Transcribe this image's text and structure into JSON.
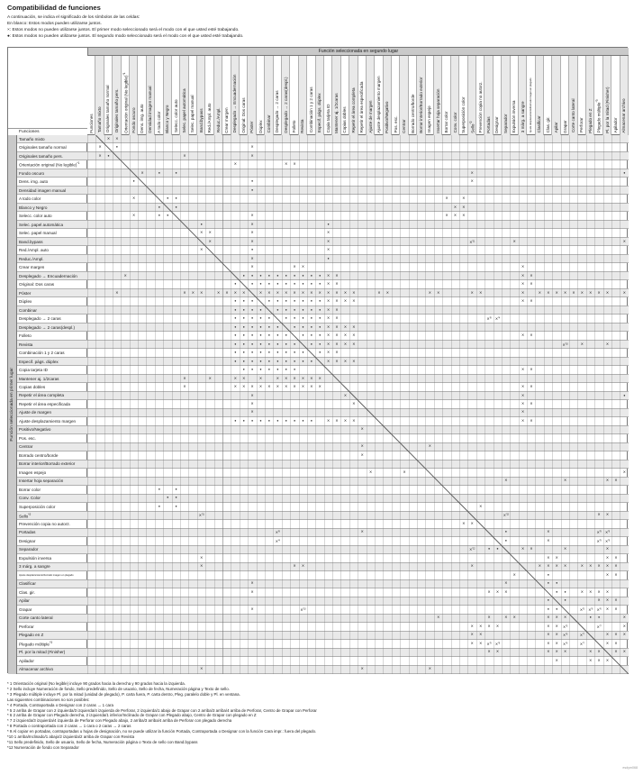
{
  "title": "Compatibilidad de funciones",
  "legend": [
    "A continuación, se indica el significado de los símbolos de las celdas:",
    "En blanco: Estos modos pueden utilizarse juntos.",
    "×: Estos modos no pueden utilizarse juntos. El primer modo seleccionado será el modo con el que usted esté trabajando.",
    "●: Estos modos no pueden utilizarse juntos. El segundo modo seleccionado será el modo con el que usted esté trabajando."
  ],
  "table": {
    "corner_label": "Funciones",
    "top_band": "Función seleccionada en segundo lugar",
    "left_band": "Función seleccionada en primer lugar",
    "symbols": {
      "x": "×",
      "o": "●"
    },
    "columns": [
      {
        "label": "Funciones"
      },
      {
        "label": "Tamaño mixto"
      },
      {
        "label": "Originales tamaño normal"
      },
      {
        "label": "Originales tamaño pers."
      },
      {
        "label": "Orientación original (No legible)",
        "sup": "*1"
      },
      {
        "label": "Fondo oscuro"
      },
      {
        "label": "Dens. img. auto"
      },
      {
        "label": "Densidad imagen manual"
      },
      {
        "label": "A todo color"
      },
      {
        "label": "Blanco y Negro"
      },
      {
        "label": "Selecc. color auto"
      },
      {
        "label": "Selec. papel automática"
      },
      {
        "label": "Selec. papel manual"
      },
      {
        "label": "Band.bypass"
      },
      {
        "label": "Red./Ampl. auto"
      },
      {
        "label": "Reduc./Ampl."
      },
      {
        "label": "Crear margen"
      },
      {
        "label": "Desplegado → Encuadernación"
      },
      {
        "label": "Original: Dos caras"
      },
      {
        "label": "Póster"
      },
      {
        "label": "Dúplex"
      },
      {
        "label": "Combinar"
      },
      {
        "label": "Desplegado → 2 caras"
      },
      {
        "label": "Desplegado → 2 caras(despl.)"
      },
      {
        "label": "Folleto"
      },
      {
        "label": "Revista"
      },
      {
        "label": "Combinación 1 y 2 caras"
      },
      {
        "label": "Especif. págs. dúplex"
      },
      {
        "label": "Copia tarjeta ID"
      },
      {
        "label": "Mantener aj. 1/2caras"
      },
      {
        "label": "Copias dobles"
      },
      {
        "label": "Repetir el área completa"
      },
      {
        "label": "Repetir el área especificada"
      },
      {
        "label": "Ajuste de margen"
      },
      {
        "label": "Ajuste desplazamiento margen"
      },
      {
        "label": "Positivo/Negativo"
      },
      {
        "label": "Pos. esc."
      },
      {
        "label": "Centrar"
      },
      {
        "label": "Borrado centro/borde"
      },
      {
        "label": "Borrar interior/Borrado exterior"
      },
      {
        "label": "Imagen espejo"
      },
      {
        "label": "Insertar hoja separación"
      },
      {
        "label": "Borrar color"
      },
      {
        "label": "Conv. color"
      },
      {
        "label": "Superposición color"
      },
      {
        "label": "Sello",
        "sup": "*2"
      },
      {
        "label": "Prevención copia no autorz."
      },
      {
        "label": "Portadas"
      },
      {
        "label": "Designar"
      },
      {
        "label": "Separador"
      },
      {
        "label": "Expulsión inversa"
      },
      {
        "label": "3 márg. a sangre"
      },
      {
        "label": "Ajuste desplazamiento/borrado imagen en plegado",
        "tiny": true
      },
      {
        "label": "Clasificar"
      },
      {
        "label": "Clas. gir."
      },
      {
        "label": "Apilar"
      },
      {
        "label": "Grapar"
      },
      {
        "label": "Corte canto lateral"
      },
      {
        "label": "Perforar"
      },
      {
        "label": "Plegado en Z"
      },
      {
        "label": "Plegado múltiple",
        "sup": "*3"
      },
      {
        "label": "Pl. por la mitad (Finisher)"
      },
      {
        "label": "Apilador"
      },
      {
        "label": "Almacenar archivo"
      }
    ],
    "rows": [
      {
        "label": "Tamaño mixto"
      },
      {
        "label": "Originales tamaño normal"
      },
      {
        "label": "Originales tamaño pers."
      },
      {
        "label": "Orientación original (No legible)",
        "sup": "*1"
      },
      {
        "label": "Fondo oscuro"
      },
      {
        "label": "Dens. img. auto"
      },
      {
        "label": "Densidad imagen manual"
      },
      {
        "label": "A todo color"
      },
      {
        "label": "Blanco y Negro"
      },
      {
        "label": "Selecc. color auto"
      },
      {
        "label": "Selec. papel automática"
      },
      {
        "label": "Selec. papel manual"
      },
      {
        "label": "Band.bypass"
      },
      {
        "label": "Red./Ampl. auto"
      },
      {
        "label": "Reduc./Ampl."
      },
      {
        "label": "Crear margen"
      },
      {
        "label": "Desplegado → Encuadernación"
      },
      {
        "label": "Original: Dos caras"
      },
      {
        "label": "Póster"
      },
      {
        "label": "Dúplex"
      },
      {
        "label": "Combinar"
      },
      {
        "label": "Desplegado → 2 caras"
      },
      {
        "label": "Desplegado → 2 caras(despl.)"
      },
      {
        "label": "Folleto"
      },
      {
        "label": "Revista"
      },
      {
        "label": "Combinación 1 y 2 caras"
      },
      {
        "label": "Especif. págs. dúplex"
      },
      {
        "label": "Copia tarjeta ID"
      },
      {
        "label": "Mantener aj. 1/2caras"
      },
      {
        "label": "Copias dobles"
      },
      {
        "label": "Repetir el área completa"
      },
      {
        "label": "Repetir el área especificada"
      },
      {
        "label": "Ajuste de margen"
      },
      {
        "label": "Ajuste desplazamiento margen"
      },
      {
        "label": "Positivo/Negativo"
      },
      {
        "label": "Pos. esc."
      },
      {
        "label": "Centrar"
      },
      {
        "label": "Borrado centro/borde"
      },
      {
        "label": "Borrar interior/Borrado exterior"
      },
      {
        "label": "Imagen espejo"
      },
      {
        "label": "Insertar hoja separación"
      },
      {
        "label": "Borrar color"
      },
      {
        "label": "Conv. Color"
      },
      {
        "label": "Superposición color"
      },
      {
        "label": "Sello",
        "sup": "*2"
      },
      {
        "label": "Prevención copia no autorz."
      },
      {
        "label": "Portadas"
      },
      {
        "label": "Designar"
      },
      {
        "label": "Separador"
      },
      {
        "label": "Expulsión inversa"
      },
      {
        "label": "3 márg. a sangre"
      },
      {
        "label": "Ajuste desplazamiento/borrado imagen en plegado",
        "tiny": true
      },
      {
        "label": "Clasificar"
      },
      {
        "label": "Clas. gir."
      },
      {
        "label": "Apilar"
      },
      {
        "label": "Grapar"
      },
      {
        "label": "Corte canto lateral"
      },
      {
        "label": "Perforar"
      },
      {
        "label": "Plegado en Z"
      },
      {
        "label": "Plegado múltiple",
        "sup": "*3"
      },
      {
        "label": "Pl. por la mitad (Finisher)"
      },
      {
        "label": "Apilador"
      },
      {
        "label": "Almacenar archivo"
      }
    ],
    "marks": {
      "1": "x2 x3",
      "2": "x1 o3 x19",
      "3": "x1 o2 x11 x19",
      "4": "x17 x23 x24",
      "5": "x6 o8 o10 x45 o63",
      "6": "o5 o19 x45",
      "7": "o19",
      "8": "x5 o9 o10 x42 x44",
      "9": "o8 o10 x43 x44",
      "10": "x5 o8 o9 x19 x42 x43 x44",
      "11": "o13 x19 o28",
      "12": "x13 x14 x19 x28",
      "13": "x14 x19 x28 x45s11 x50 x63",
      "14": "x13 o19 x28",
      "15": "x19 o28",
      "16": "x19 x24 x25 x51",
      "17": "x4 o18-27 x28 x29 x51 x52",
      "18": "o17 o19-27 x28 x29 x51 x52",
      "19": "x3 x11 x12 x13 x15 x16 x17 x18 x20-31 x34 x35 x40 x41 x45 x46 x51 x53-61 x63",
      "20": "o17 o18 o19 o21-27 x28-31 x51 x52",
      "21": "o17-20 o22-27 x28 x29",
      "22": "o17-21 o23-27 x28 x29 x47s8 x48s4",
      "23": "o17-22 o24-27 x28-31",
      "24": "o17-23 o25 o26 o27 x28-31 x51 x52",
      "25": "o17-24 o26 o27 x28-31 x56s10 x58 x61",
      "26": "o17-25 o27 x28 x29",
      "27": "o17-26 x28-31",
      "28": "o18-24 x51 x52",
      "29": "x11 x14 x17 x18 x20 x22-27",
      "30": "x11 x17-27 x51 x52",
      "31": "x19 x30 x51 o63",
      "32": "x19 x31 x51 x52",
      "33": "x19 x51",
      "34": "o17-26 x28-31 x51 x52",
      "35": "x32",
      "37": "x32 x40",
      "38": "x32",
      "40": "x33 x37 x63",
      "41": "x49 x56 x61 x62",
      "42": "o8 o10",
      "43": "o9 o10",
      "44": "o8 o10 x46",
      "45": "x13s11 x49s12 x60 x61",
      "46": "x44 x45",
      "47": "x22s8 x32 o49 x54 x60s9 x61s9",
      "48": "x22s4 o49 x54 x60s9 x61s9",
      "49": "x45s12 o47 o48 x51 x52 x56 x61",
      "50": "x13 x54 x55 x61 x62",
      "51": "x13 x24 x25 x45 x53-56 x58-62",
      "52": "x50 o54 x61 x62",
      "53": "x19 x49 o54 o55",
      "54": "x19 x47 x48 x49 o55 o56 x58-61",
      "55": "o54 o56 x60 x61 x62",
      "56": "x19 x25s10 o54 o55 x58s5 x59s6 x60s6 x61 x62",
      "57": "x41 x47 x49 x50 x54 x55 x56 o59 o60 x63",
      "58": "x45 x46 x47 x48 x54 x55 x56s5 x60s7 x63",
      "59": "x45 x46 x54 x55 x56s6 x58s7 x61 x62 x63",
      "60": "x45 x46 x47s9 x48s9 x54 x55 x56s6 x58s7 x61 x62",
      "61": "x47 x48 x54 x55 x56 x59 x60 x62 x63",
      "62": "x55 x59 x60 x61",
      "63": "x13 x32 x40"
    }
  },
  "footnotes": [
    "* 1 Orientación original (No legible) incluye 90 grados hacia la derecha y 90 grados hacia la izquierda.",
    "* 2 Sello incluye Numeración de fondo, Sello predefinido, Sello de usuario, Sello de fecha, Numeración página y Texto de sello.",
    "* 3 Plegado múltiple incluye Pl. por la mitad (unidad de plegado), P. carta fuera, P. carta dentro, Pleg. paralelo doble y Pl. en ventana.",
    "Las siguientes combinaciones no son posibles:",
    "* 4 Portada, Contraportada o Designar con 2 caras → 1 cara",
    "* 5 2 arriba de Grapar con 2 izquierda/3 izquierda/4 izquierda de Perforar, 2 izquierda/1 abajo de Grapar con 2 arriba/3 arriba/4 arriba de Perforar, Centro de Grapar con Perforar",
    "* 6 2 arriba de Grapar con Plegado derecha, 2 izquierda/1 inferior/Inclinado de Grapar con Plegado abajo, Centro de Grapar con plegado en Z",
    "* 7 2 izquierda/3 izquierda/4 izquierda de Perforar con Plegado abajo, 2 arriba/3 arriba/4 arriba de Perforar con plegado derecha",
    "* 8 Portada o contraportada con 2 caras → 1 cara o 2 caras → 2 caras",
    "* 9 Al copiar en portadas, contraportadas u hojas de designación, no se puede utilizar la función Portada, Contraportada o Designar con la función Cara impr.: fuera del plegado.",
    "*10 1 arriba/Inclinado/1 abajo/2 izquierda/2 arriba de Grapar con Revista",
    "*11 Sello predefinido, Sello de usuario, Sello de fecha, Numeración página o Texto de sello con Band.bypass",
    "*12 Numeración de fondo con Separador"
  ],
  "page_code": "esdym068",
  "colors": {
    "band_gray": "#c9c9c9",
    "stripe_gray": "#e9e9e9",
    "grid_line": "#b0b0b0",
    "frame_line": "#777777",
    "mark_color": "#222222"
  }
}
